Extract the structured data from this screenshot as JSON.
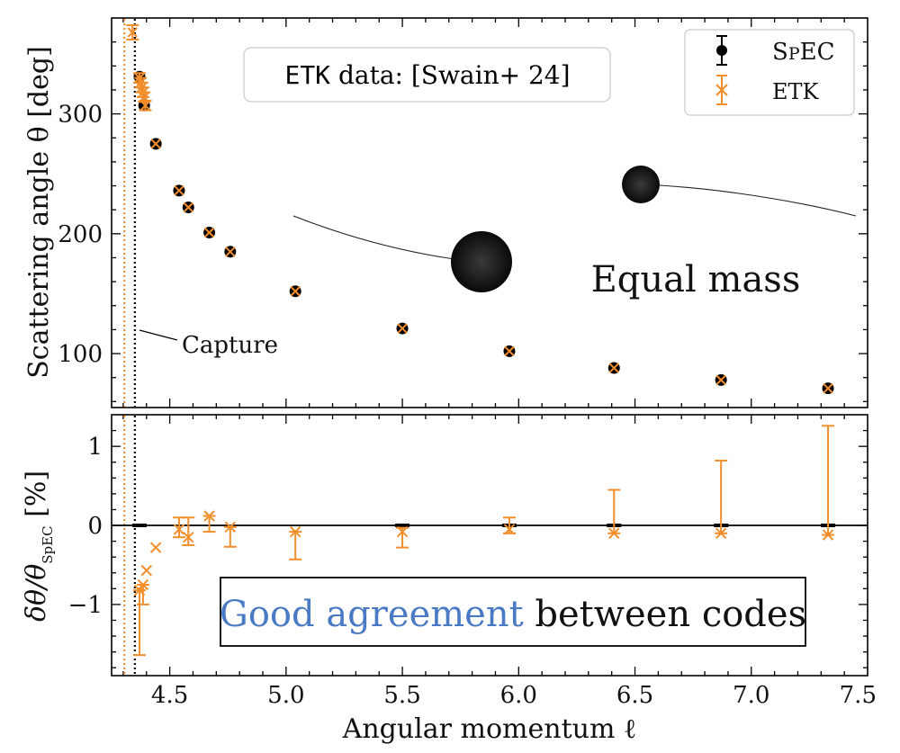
{
  "chart_data": [
    {
      "type": "scatter",
      "panel": "top",
      "ylabel": "Scattering angle θ [deg]",
      "xlim": [
        4.25,
        7.5
      ],
      "ylim": [
        55,
        380
      ],
      "yticks": [
        100,
        200,
        300
      ],
      "ytick_labels": [
        "100",
        "200",
        "300"
      ],
      "series": [
        {
          "name": "SpEC",
          "marker": "circle",
          "color": "#000000",
          "x": [
            4.37,
            4.39,
            4.44,
            4.54,
            4.58,
            4.67,
            4.76,
            5.04,
            5.5,
            5.96,
            6.41,
            6.87,
            7.33
          ],
          "y": [
            331,
            307,
            275,
            236,
            222,
            201,
            185,
            152,
            121,
            102,
            88,
            78,
            71
          ]
        },
        {
          "name": "ETK",
          "marker": "x",
          "color": "#f28e2b",
          "x": [
            4.34,
            4.37,
            4.375,
            4.38,
            4.385,
            4.39,
            4.395,
            4.44,
            4.54,
            4.58,
            4.67,
            4.76,
            5.04,
            5.5,
            5.96,
            6.41,
            6.87,
            7.33
          ],
          "y": [
            368,
            330,
            326,
            322,
            318,
            314,
            307,
            275,
            236,
            222,
            201,
            185,
            152,
            121,
            102,
            88,
            78,
            71
          ],
          "yerr_lo": [
            6,
            4,
            4,
            4,
            4,
            4,
            4,
            0,
            0,
            0,
            0,
            0,
            0,
            0,
            0,
            0,
            0,
            0
          ],
          "yerr_hi": [
            6,
            4,
            4,
            4,
            4,
            4,
            4,
            0,
            0,
            0,
            0,
            0,
            0,
            0,
            0,
            0,
            0,
            0
          ]
        }
      ],
      "vlines": [
        {
          "x": 4.305,
          "color": "#f28e2b",
          "style": "dotted"
        },
        {
          "x": 4.35,
          "color": "#000000",
          "style": "dotted"
        }
      ],
      "legend": {
        "placement": "top-right",
        "entries": [
          "SpEC",
          "ETK"
        ]
      },
      "annotations": {
        "capture": "Capture",
        "source_box_code": "ETK",
        "source_box_rest": " data: [Swain+ 24]",
        "equal_mass": "Equal mass"
      }
    },
    {
      "type": "scatter",
      "panel": "bottom",
      "xlabel": "Angular momentum ℓ",
      "ylabel": "δθ/θ",
      "ylabel_sub": "SpEC",
      "ylabel_unit": " [%]",
      "xlim": [
        4.25,
        7.5
      ],
      "ylim": [
        -1.9,
        1.4
      ],
      "yticks": [
        -1,
        0,
        1
      ],
      "ytick_labels": [
        "−1",
        "0",
        "1"
      ],
      "xticks": [
        4.5,
        5.0,
        5.5,
        6.0,
        6.5,
        7.0,
        7.5
      ],
      "xtick_labels": [
        "4.5",
        "5.0",
        "5.5",
        "6.0",
        "6.5",
        "7.0",
        "7.5"
      ],
      "series": [
        {
          "name": "SpEC",
          "marker": "bar",
          "color": "#000000",
          "x": [
            4.37,
            5.5,
            5.96,
            6.41,
            6.87,
            7.33
          ],
          "y": [
            0,
            0,
            0,
            0,
            0,
            0
          ]
        },
        {
          "name": "ETK",
          "marker": "x",
          "color": "#f28e2b",
          "x": [
            4.37,
            4.385,
            4.4,
            4.44,
            4.54,
            4.58,
            4.67,
            4.76,
            5.04,
            5.5,
            5.96,
            6.41,
            6.87,
            7.33
          ],
          "y": [
            -0.82,
            -0.75,
            -0.57,
            -0.28,
            -0.05,
            -0.15,
            0.12,
            -0.02,
            -0.08,
            -0.08,
            -0.05,
            -0.1,
            -0.1,
            -0.12
          ],
          "yerr_lo": [
            0.82,
            0.25,
            0.0,
            0.0,
            0.1,
            0.1,
            0.2,
            0.25,
            0.35,
            0.2,
            0.05,
            0.0,
            0.0,
            0.0
          ],
          "yerr_hi": [
            0.0,
            0.0,
            0.0,
            0.0,
            0.15,
            0.25,
            0.0,
            0.0,
            0.0,
            0.05,
            0.15,
            0.55,
            0.92,
            1.38
          ]
        }
      ],
      "hline": {
        "y": 0,
        "color": "#000000"
      },
      "annotation": {
        "good": "Good agreement",
        "rest": " between codes"
      }
    }
  ]
}
